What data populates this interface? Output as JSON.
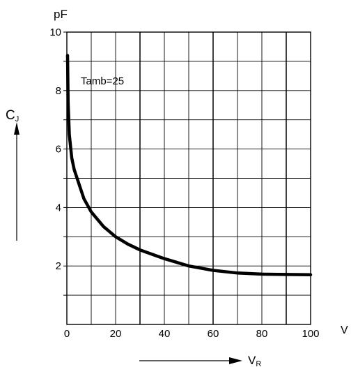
{
  "chart_data": {
    "type": "line",
    "title": "",
    "y_unit_label": "pF",
    "y_symbol": {
      "main": "C",
      "sub": "J"
    },
    "x_unit_label": "V",
    "x_symbol": {
      "main": "V",
      "sub": "R"
    },
    "annotation": "Tamb=25",
    "xlim": [
      0,
      100
    ],
    "ylim": [
      0,
      10
    ],
    "x_ticks": [
      0,
      20,
      40,
      60,
      80,
      100
    ],
    "y_ticks": [
      2,
      4,
      6,
      8,
      10
    ],
    "grid": true,
    "series": [
      {
        "x": [
          0.3,
          0.5,
          1,
          2,
          3,
          5,
          7,
          10,
          15,
          20,
          25,
          30,
          40,
          50,
          60,
          70,
          80,
          90,
          100
        ],
        "y": [
          9.2,
          7.6,
          6.5,
          5.7,
          5.3,
          4.8,
          4.3,
          3.85,
          3.35,
          3.0,
          2.75,
          2.55,
          2.25,
          2.0,
          1.85,
          1.76,
          1.72,
          1.71,
          1.7
        ]
      }
    ]
  }
}
